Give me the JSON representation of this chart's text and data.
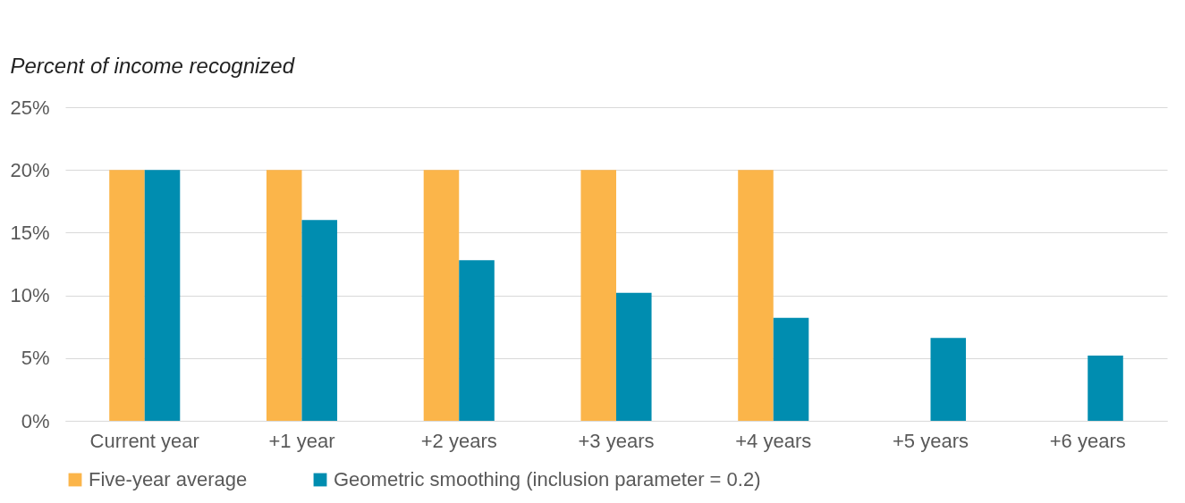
{
  "chart_data": {
    "type": "bar",
    "ylabel": "Percent of income recognized",
    "categories": [
      "Current year",
      "+1 year",
      "+2 years",
      "+3 years",
      "+4 years",
      "+5 years",
      "+6 years"
    ],
    "series": [
      {
        "name": "Five-year average",
        "color": "#fbb54a",
        "values": [
          20,
          20,
          20,
          20,
          20,
          null,
          null
        ]
      },
      {
        "name": "Geometric smoothing (inclusion parameter = 0.2)",
        "color": "#008db0",
        "values": [
          20,
          16,
          12.8,
          10.2,
          8.2,
          6.6,
          5.2
        ]
      }
    ],
    "ylim": [
      0,
      25
    ],
    "yticks": [
      {
        "value": 0,
        "label": "0%"
      },
      {
        "value": 5,
        "label": "5%"
      },
      {
        "value": 10,
        "label": "10%"
      },
      {
        "value": 15,
        "label": "15%"
      },
      {
        "value": 20,
        "label": "20%"
      },
      {
        "value": 25,
        "label": "25%"
      }
    ],
    "grid": "y",
    "legend": "bottom"
  }
}
